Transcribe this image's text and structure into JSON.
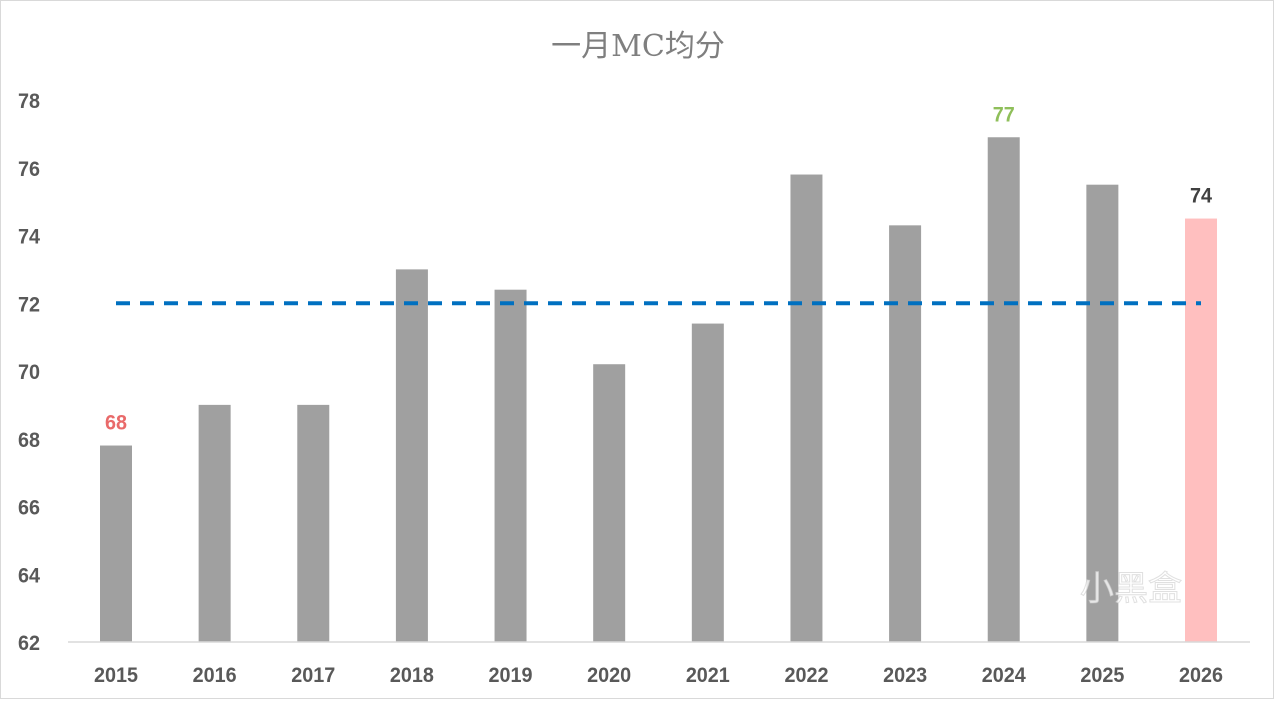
{
  "chart_data": {
    "type": "bar",
    "title": "一月MC均分",
    "xlabel": "",
    "ylabel": "",
    "categories": [
      "2015",
      "2016",
      "2017",
      "2018",
      "2019",
      "2020",
      "2021",
      "2022",
      "2023",
      "2024",
      "2025",
      "2026"
    ],
    "values": [
      67.8,
      69.0,
      69.0,
      73.0,
      72.4,
      70.2,
      71.4,
      75.8,
      74.3,
      76.9,
      75.5,
      74.5
    ],
    "bar_colors": [
      "#a0a0a0",
      "#a0a0a0",
      "#a0a0a0",
      "#a0a0a0",
      "#a0a0a0",
      "#a0a0a0",
      "#a0a0a0",
      "#a0a0a0",
      "#a0a0a0",
      "#a0a0a0",
      "#a0a0a0",
      "#ffbfbf"
    ],
    "ylim": [
      62,
      78
    ],
    "yticks": [
      "62",
      "64",
      "66",
      "68",
      "70",
      "72",
      "74",
      "76",
      "78"
    ],
    "grid": false,
    "reference_line": {
      "value": 72,
      "style": "dashed",
      "color": "#0070c0"
    },
    "data_labels": [
      {
        "index": 0,
        "text": "68",
        "color": "#e96a6a"
      },
      {
        "index": 9,
        "text": "77",
        "color": "#8fbf5a"
      },
      {
        "index": 11,
        "text": "74",
        "color": "#404040"
      }
    ]
  },
  "watermark": "小黑盒"
}
